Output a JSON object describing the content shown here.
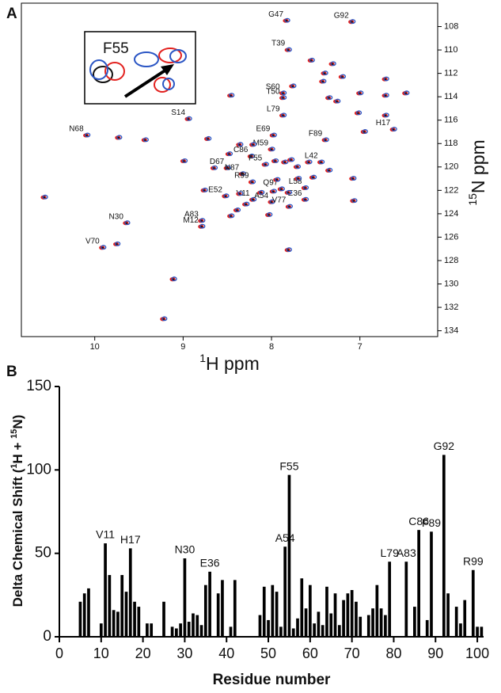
{
  "chart_data": [
    {
      "type": "scatter",
      "panel_label": "A",
      "inset_label": "F55",
      "xlabel": [
        {
          "text": "1",
          "sup": true
        },
        {
          "text": "H ppm"
        }
      ],
      "ylabel": [
        {
          "text": "15",
          "sup": true
        },
        {
          "text": "N ppm"
        }
      ],
      "xlim": [
        10.83,
        6.12
      ],
      "xticks": [
        10,
        9,
        8,
        7
      ],
      "ylim": [
        134.5,
        106
      ],
      "yticks": [
        108,
        110,
        112,
        114,
        116,
        118,
        120,
        122,
        124,
        126,
        128,
        130,
        132,
        134
      ],
      "colors": [
        "#e3221f",
        "#2a55c4",
        "#111111"
      ],
      "x": [
        7.83,
        7.09,
        7.81,
        7.87,
        7.87,
        7.87,
        7.98,
        7.39,
        6.62,
        10.09,
        8.94,
        8.23,
        8.0,
        8.07,
        8.5,
        7.44,
        8.33,
        8.22,
        8.52,
        8.21,
        7.89,
        8.0,
        7.62,
        7.62,
        7.8,
        9.64,
        8.79,
        8.79,
        9.91,
        10.57,
        9.11,
        9.22,
        9.73,
        9.75,
        7.55,
        7.4,
        7.31,
        7.2,
        7.42,
        6.71,
        6.71,
        6.48,
        7.0,
        8.46,
        7.35,
        7.26,
        7.76,
        6.71,
        7.02,
        6.95,
        9.43,
        8.99,
        8.72,
        8.48,
        8.36,
        8.65,
        7.94,
        7.85,
        7.71,
        7.58,
        8.36,
        8.12,
        7.98,
        7.81,
        8.29,
        8.46,
        8.39,
        8.03,
        7.7,
        7.53,
        7.35,
        7.08,
        7.07,
        7.78,
        7.81,
        8.76,
        8.21,
        7.96
      ],
      "y": [
        107.5,
        107.6,
        110.0,
        113.7,
        114.1,
        115.6,
        117.3,
        117.7,
        116.8,
        117.3,
        115.9,
        119.1,
        118.5,
        119.8,
        120.1,
        119.6,
        120.6,
        121.3,
        122.5,
        122.8,
        121.9,
        123.0,
        121.8,
        122.8,
        123.4,
        124.8,
        124.6,
        125.1,
        126.9,
        122.6,
        129.6,
        133.0,
        117.5,
        126.6,
        110.9,
        112.0,
        111.2,
        112.3,
        112.7,
        112.5,
        113.9,
        113.7,
        113.7,
        113.9,
        114.1,
        114.4,
        113.1,
        115.6,
        115.4,
        117.0,
        117.7,
        119.5,
        117.6,
        118.9,
        118.1,
        120.1,
        121.1,
        119.6,
        120.0,
        119.6,
        122.3,
        122.2,
        122.1,
        122.2,
        123.2,
        124.2,
        123.7,
        124.1,
        121.0,
        120.9,
        120.3,
        121.0,
        122.9,
        119.4,
        127.1,
        122.0,
        118.1,
        119.5
      ],
      "labels": [
        "G47",
        "G92",
        "T39",
        "S60",
        "T50",
        "L79",
        "E69",
        "F89",
        "H17",
        "N68",
        "S14",
        "C86",
        "M59",
        "F55",
        "D67",
        "L42",
        "N87",
        "R99",
        "E52",
        "V11",
        "Q97",
        "A54",
        "L58",
        "E36",
        "V77",
        "N30",
        "A83",
        "M12",
        "V70",
        null,
        null,
        null,
        null,
        null,
        null,
        null,
        null,
        null,
        null,
        null,
        null,
        null,
        null,
        null,
        null,
        null,
        null,
        null,
        null,
        null,
        null,
        null,
        null,
        null,
        null,
        null,
        null,
        null,
        null,
        null,
        null,
        null,
        null,
        null,
        null,
        null,
        null,
        null,
        null,
        null,
        null,
        null,
        null,
        null,
        null,
        null,
        null,
        null
      ]
    },
    {
      "type": "bar",
      "panel_label": "B",
      "color": "#000000",
      "xlabel": [
        {
          "text": "Residue number"
        }
      ],
      "ylabel": [
        {
          "text": "Delta Chemical Shift ("
        },
        {
          "text": "1",
          "sup": true
        },
        {
          "text": "H + "
        },
        {
          "text": "15",
          "sup": true
        },
        {
          "text": "N)"
        }
      ],
      "xlim": [
        0,
        101.5
      ],
      "xticks": [
        0,
        10,
        20,
        30,
        40,
        50,
        60,
        70,
        80,
        90,
        100
      ],
      "ylim": [
        0,
        150
      ],
      "yticks": [
        0,
        50,
        100,
        150
      ],
      "x": [
        5,
        6,
        7,
        10,
        11,
        12,
        13,
        14,
        15,
        16,
        17,
        18,
        19,
        21,
        22,
        25,
        27,
        28,
        29,
        30,
        31,
        32,
        33,
        34,
        35,
        36,
        38,
        39,
        41,
        42,
        48,
        49,
        50,
        51,
        52,
        53,
        54,
        55,
        56,
        57,
        58,
        59,
        60,
        61,
        62,
        63,
        64,
        65,
        66,
        67,
        68,
        69,
        70,
        71,
        72,
        74,
        75,
        76,
        77,
        78,
        79,
        83,
        85,
        86,
        88,
        89,
        92,
        93,
        95,
        96,
        97,
        99,
        100,
        101
      ],
      "values": [
        21,
        26,
        29,
        8,
        56,
        37,
        16,
        15,
        37,
        27,
        53,
        21,
        18,
        8,
        8,
        21,
        6,
        5,
        8,
        47,
        9,
        14,
        13,
        7,
        31,
        39,
        26,
        34,
        6,
        34,
        13,
        30,
        10,
        31,
        27,
        6,
        54,
        97,
        5,
        11,
        35,
        17,
        31,
        8,
        15,
        7,
        30,
        14,
        26,
        7,
        22,
        26,
        28,
        21,
        12,
        13,
        17,
        31,
        17,
        13,
        45,
        45,
        18,
        64,
        10,
        63,
        109,
        26,
        18,
        8,
        22,
        40,
        6,
        6
      ],
      "labels": [
        null,
        null,
        null,
        null,
        "V11",
        null,
        null,
        null,
        null,
        null,
        "H17",
        null,
        null,
        null,
        null,
        null,
        null,
        null,
        null,
        "N30",
        null,
        null,
        null,
        null,
        null,
        "E36",
        null,
        null,
        null,
        null,
        null,
        null,
        null,
        null,
        null,
        null,
        "A54",
        "F55",
        null,
        null,
        null,
        null,
        null,
        null,
        null,
        null,
        null,
        null,
        null,
        null,
        null,
        null,
        null,
        null,
        null,
        null,
        null,
        null,
        null,
        null,
        "L79",
        "A83",
        null,
        "C86",
        null,
        "F89",
        "G92",
        null,
        null,
        null,
        null,
        "R99",
        null,
        null
      ]
    }
  ]
}
